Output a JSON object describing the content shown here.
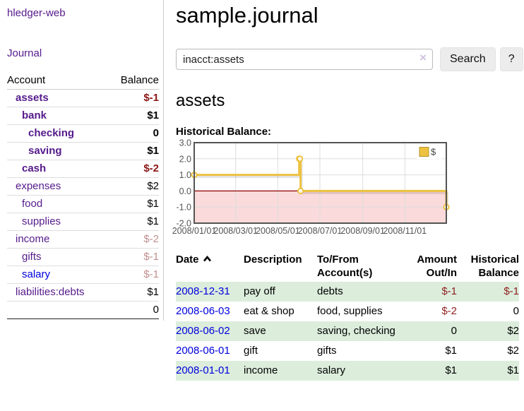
{
  "app": {
    "brand": "hledger-web",
    "nav_journal": "Journal"
  },
  "sidebar": {
    "header": {
      "account": "Account",
      "balance": "Balance"
    },
    "accounts": [
      {
        "name": "assets",
        "indent": 0,
        "balance": "$-1",
        "bold": true,
        "neg": "strong",
        "link": "purple"
      },
      {
        "name": "bank",
        "indent": 1,
        "balance": "$1",
        "bold": true,
        "neg": "none",
        "link": "purple"
      },
      {
        "name": "checking",
        "indent": 2,
        "balance": "0",
        "bold": true,
        "neg": "none",
        "link": "purple"
      },
      {
        "name": "saving",
        "indent": 2,
        "balance": "$1",
        "bold": true,
        "neg": "none",
        "link": "purple"
      },
      {
        "name": "cash",
        "indent": 1,
        "balance": "$-2",
        "bold": true,
        "neg": "strong",
        "link": "purple"
      },
      {
        "name": "expenses",
        "indent": 0,
        "balance": "$2",
        "bold": false,
        "neg": "none",
        "link": "purple"
      },
      {
        "name": "food",
        "indent": 1,
        "balance": "$1",
        "bold": false,
        "neg": "none",
        "link": "purple"
      },
      {
        "name": "supplies",
        "indent": 1,
        "balance": "$1",
        "bold": false,
        "neg": "none",
        "link": "purple"
      },
      {
        "name": "income",
        "indent": 0,
        "balance": "$-2",
        "bold": false,
        "neg": "soft",
        "link": "purple"
      },
      {
        "name": "gifts",
        "indent": 1,
        "balance": "$-1",
        "bold": false,
        "neg": "soft",
        "link": "purple"
      },
      {
        "name": "salary",
        "indent": 1,
        "balance": "$-1",
        "bold": false,
        "neg": "soft",
        "link": "blue"
      },
      {
        "name": "liabilities:debts",
        "indent": 0,
        "balance": "$1",
        "bold": false,
        "neg": "none",
        "link": "purple"
      }
    ],
    "total": "0"
  },
  "header": {
    "title": "sample.journal"
  },
  "search": {
    "value": "inacct:assets",
    "clear_icon": "×",
    "button": "Search",
    "help": "?"
  },
  "page": {
    "heading": "assets",
    "chart_label": "Historical Balance:"
  },
  "chart_data": {
    "type": "line",
    "style": "step",
    "title": "Historical Balance",
    "series": [
      {
        "name": "$",
        "color": "#EDC240",
        "points": [
          [
            "2008-01-01",
            1
          ],
          [
            "2008-06-01",
            2
          ],
          [
            "2008-06-02",
            2
          ],
          [
            "2008-06-03",
            0
          ],
          [
            "2008-12-31",
            -1
          ]
        ]
      }
    ],
    "x_range": [
      "2008-01-01",
      "2008-12-31"
    ],
    "ylim": [
      -2,
      3
    ],
    "y_ticks": [
      {
        "v": 3,
        "label": "3.0"
      },
      {
        "v": 2,
        "label": "2.0"
      },
      {
        "v": 1,
        "label": "1.0"
      },
      {
        "v": 0,
        "label": "0.0"
      },
      {
        "v": -1,
        "label": "-1.0"
      },
      {
        "v": -2,
        "label": "-2.0"
      }
    ],
    "x_ticks": [
      {
        "date": "2008-01-01",
        "label": "2008/01/01"
      },
      {
        "date": "2008-03-01",
        "label": "2008/03/01"
      },
      {
        "date": "2008-05-01",
        "label": "2008/05/01"
      },
      {
        "date": "2008-07-01",
        "label": "2008/07/01"
      },
      {
        "date": "2008-09-01",
        "label": "2008/09/01"
      },
      {
        "date": "2008-11-01",
        "label": "2008/11/01"
      }
    ],
    "legend": {
      "label": "$",
      "position": "top-right"
    },
    "grid": true,
    "negative_region_color": "#fadada",
    "zero_line_color": "#8b0000",
    "border_color": "#545454",
    "tick_color": "#545454"
  },
  "table": {
    "headers": {
      "date": "Date",
      "description": "Description",
      "accounts": "To/From Account(s)",
      "amount": "Amount Out/In",
      "balance": "Historical Balance"
    },
    "rows": [
      {
        "date": "2008-12-31",
        "description": "pay off",
        "accounts": "debts",
        "amount": "$-1",
        "amount_neg": true,
        "balance": "$-1",
        "balance_neg": true
      },
      {
        "date": "2008-06-03",
        "description": "eat & shop",
        "accounts": "food, supplies",
        "amount": "$-2",
        "amount_neg": true,
        "balance": "0",
        "balance_neg": false
      },
      {
        "date": "2008-06-02",
        "description": "save",
        "accounts": "saving, checking",
        "amount": "0",
        "amount_neg": false,
        "balance": "$2",
        "balance_neg": false
      },
      {
        "date": "2008-06-01",
        "description": "gift",
        "accounts": "gifts",
        "amount": "$1",
        "amount_neg": false,
        "balance": "$2",
        "balance_neg": false
      },
      {
        "date": "2008-01-01",
        "description": "income",
        "accounts": "salary",
        "amount": "$1",
        "amount_neg": false,
        "balance": "$1",
        "balance_neg": false
      }
    ]
  },
  "colors": {
    "link_purple": "#551a8b",
    "link_blue": "#0000dd",
    "negative_strong": "#8b1515",
    "negative_soft": "#c08f8f",
    "table_negative": "#8e1f1f",
    "row_green": "#dceddc",
    "series_gold": "#EDC240"
  }
}
